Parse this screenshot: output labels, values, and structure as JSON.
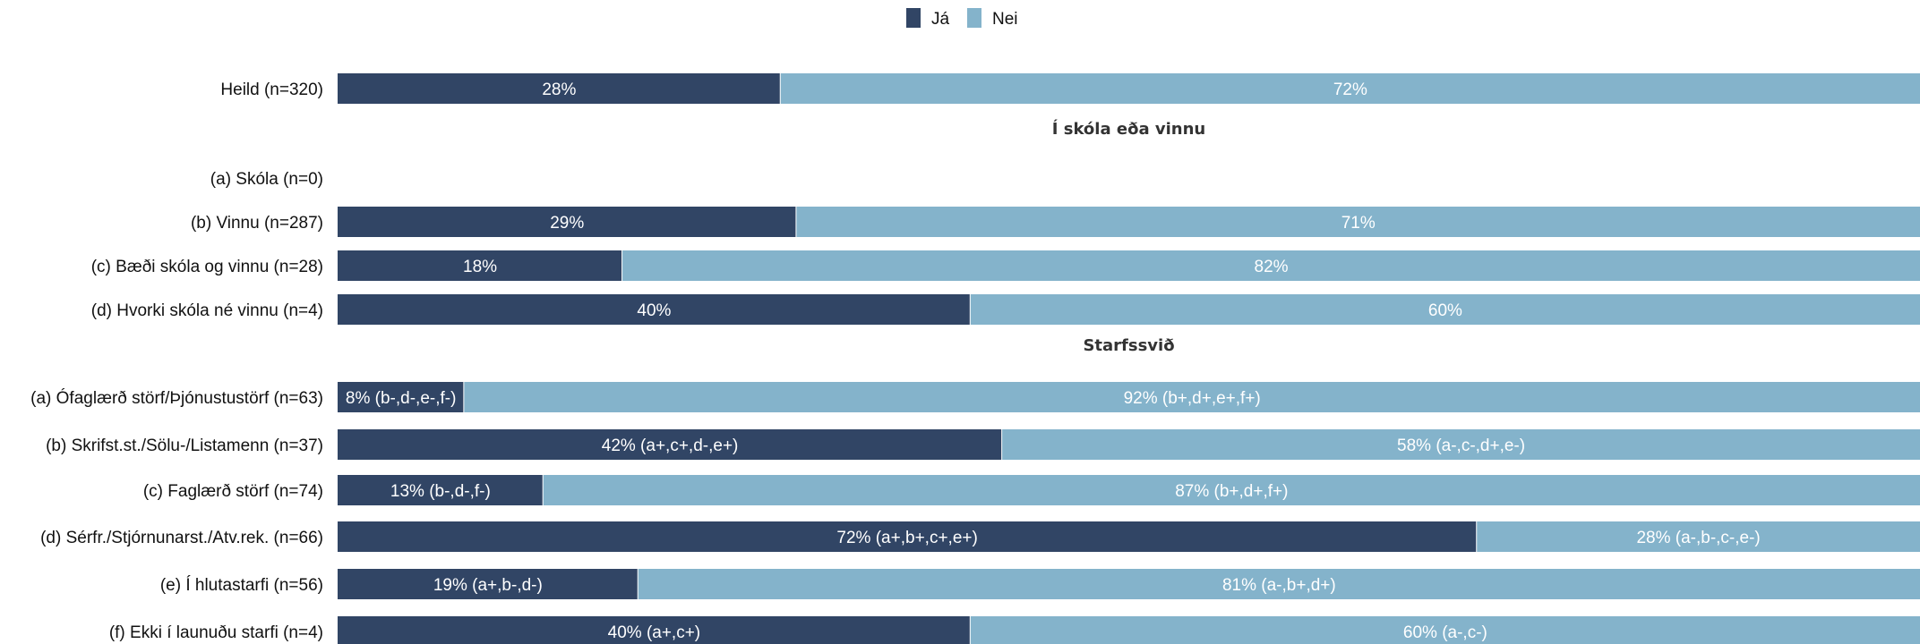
{
  "chart_data": {
    "type": "bar",
    "orientation": "horizontal",
    "stacked": true,
    "legend_position": "top-center",
    "grid": false,
    "xlim": [
      0,
      100
    ],
    "colors": {
      "Já": "#314565",
      "Nei": "#84b3cb"
    },
    "series": [
      {
        "name": "Já",
        "color": "#314565"
      },
      {
        "name": "Nei",
        "color": "#84b3cb"
      }
    ],
    "rows": [
      {
        "kind": "bar",
        "category": "Heild (n=320)",
        "values": [
          28,
          72
        ],
        "labels": [
          "28%",
          "72%"
        ]
      },
      {
        "kind": "section",
        "title": "Í skóla eða vinnu"
      },
      {
        "kind": "bar",
        "category": "(a) Skóla (n=0)",
        "values": [
          0,
          0
        ],
        "labels": [
          "",
          ""
        ]
      },
      {
        "kind": "bar",
        "category": "(b) Vinnu (n=287)",
        "values": [
          29,
          71
        ],
        "labels": [
          "29%",
          "71%"
        ]
      },
      {
        "kind": "bar",
        "category": "(c) Bæði skóla og vinnu (n=28)",
        "values": [
          18,
          82
        ],
        "labels": [
          "18%",
          "82%"
        ]
      },
      {
        "kind": "bar",
        "category": "(d) Hvorki skóla né vinnu (n=4)",
        "values": [
          40,
          60
        ],
        "labels": [
          "40%",
          "60%"
        ]
      },
      {
        "kind": "section",
        "title": "Starfssvið"
      },
      {
        "kind": "bar",
        "category": "(a) Ófaglærð störf/Þjónustustörf (n=63)",
        "values": [
          8,
          92
        ],
        "labels": [
          "8% (b-,d-,e-,f-)",
          "92% (b+,d+,e+,f+)"
        ]
      },
      {
        "kind": "bar",
        "category": "(b) Skrifst.st./Sölu-/Listamenn (n=37)",
        "values": [
          42,
          58
        ],
        "labels": [
          "42% (a+,c+,d-,e+)",
          "58% (a-,c-,d+,e-)"
        ]
      },
      {
        "kind": "bar",
        "category": "(c) Faglærð störf (n=74)",
        "values": [
          13,
          87
        ],
        "labels": [
          "13% (b-,d-,f-)",
          "87% (b+,d+,f+)"
        ]
      },
      {
        "kind": "bar",
        "category": "(d) Sérfr./Stjórnunarst./Atv.rek. (n=66)",
        "values": [
          72,
          28
        ],
        "labels": [
          "72% (a+,b+,c+,e+)",
          "28% (a-,b-,c-,e-)"
        ]
      },
      {
        "kind": "bar",
        "category": "(e) Í hlutastarfi (n=56)",
        "values": [
          19,
          81
        ],
        "labels": [
          "19% (a+,b-,d-)",
          "81% (a-,b+,d+)"
        ]
      },
      {
        "kind": "bar",
        "category": "(f) Ekki í launuðu starfi (n=4)",
        "values": [
          40,
          60
        ],
        "labels": [
          "40% (a+,c+)",
          "60% (a-,c-)"
        ]
      }
    ]
  }
}
